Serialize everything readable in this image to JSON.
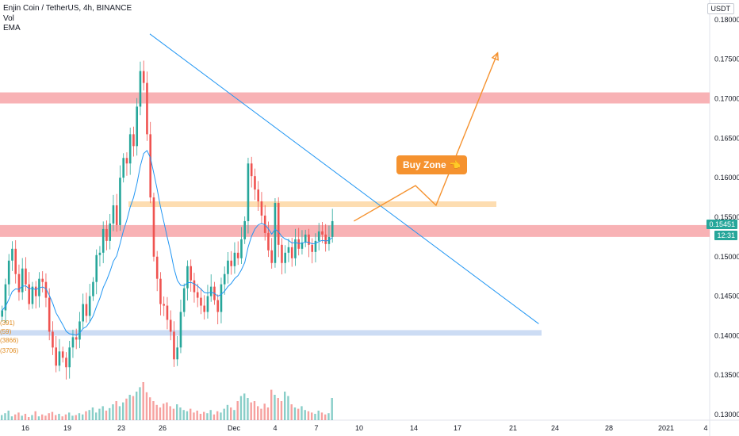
{
  "header": {
    "symbol_line": "Enjin Coin / TetherUS, 4h, BINANCE",
    "vol_label": "Vol",
    "ema_label": "EMA"
  },
  "currency_badge": "USDT",
  "price_tag": {
    "price": "0.15451",
    "countdown": "12:31"
  },
  "annotation": {
    "buy_zone": "Buy Zone 👈"
  },
  "ema_labels": [
    "(391)",
    "(59)",
    "(3866)",
    "(3706)"
  ],
  "colors": {
    "up": "#26a69a",
    "down": "#ef5350",
    "ema": "#2196f3",
    "trend": "#2196f3",
    "resistance": "#f7a5a8",
    "buy_zone": "#fdd9a8",
    "support": "#c6d8f3",
    "arrow": "#f5922f"
  },
  "chart_data": {
    "type": "candlestick",
    "y_ticks": [
      "0.18000",
      "0.17500",
      "0.17000",
      "0.16500",
      "0.16000",
      "0.15500",
      "0.15000",
      "0.14500",
      "0.14000",
      "0.13500",
      "0.13000"
    ],
    "x_ticks": [
      "16",
      "19",
      "23",
      "26",
      "Dec",
      "4",
      "7",
      "10",
      "14",
      "17",
      "21",
      "24",
      "28",
      "2021",
      "4"
    ],
    "ylim": [
      0.1293,
      0.1825
    ],
    "zones": [
      {
        "kind": "resistance",
        "low": 0.1694,
        "high": 0.1708
      },
      {
        "kind": "resistance",
        "low": 0.1525,
        "high": 0.154
      },
      {
        "kind": "buy_zone",
        "low": 0.1563,
        "high": 0.157
      },
      {
        "kind": "support",
        "low": 0.14,
        "high": 0.1407
      }
    ],
    "trendline": {
      "from": {
        "x": "Nov 24",
        "y": 0.1782
      },
      "to": {
        "x": "Dec 17",
        "y": 0.1415
      }
    },
    "projection_path": [
      {
        "x": "Dec 8",
        "y": 0.1545
      },
      {
        "x": "Dec 11",
        "y": 0.159
      },
      {
        "x": "Dec 12",
        "y": 0.1565
      },
      {
        "x": "Dec 15",
        "y": 0.1758
      }
    ],
    "closes": [
      0.1432,
      0.1465,
      0.1495,
      0.151,
      0.1478,
      0.1455,
      0.1485,
      0.1465,
      0.144,
      0.1462,
      0.145,
      0.1472,
      0.1468,
      0.1448,
      0.1405,
      0.1385,
      0.1362,
      0.138,
      0.1372,
      0.136,
      0.1385,
      0.1398,
      0.1395,
      0.1418,
      0.144,
      0.1425,
      0.145,
      0.1468,
      0.1502,
      0.1505,
      0.1535,
      0.152,
      0.1542,
      0.1565,
      0.154,
      0.16,
      0.1625,
      0.1618,
      0.1655,
      0.164,
      0.169,
      0.1735,
      0.172,
      0.1655,
      0.1575,
      0.15,
      0.1472,
      0.144,
      0.1438,
      0.142,
      0.1405,
      0.137,
      0.1385,
      0.143,
      0.146,
      0.1488,
      0.147,
      0.1455,
      0.1448,
      0.1438,
      0.143,
      0.145,
      0.1462,
      0.1445,
      0.143,
      0.1465,
      0.1478,
      0.1495,
      0.1488,
      0.1505,
      0.1498,
      0.1522,
      0.1545,
      0.1618,
      0.1602,
      0.1585,
      0.157,
      0.1552,
      0.153,
      0.1508,
      0.1492,
      0.1568,
      0.1515,
      0.1492,
      0.1505,
      0.1512,
      0.1498,
      0.1522,
      0.151,
      0.1518,
      0.1528,
      0.1515,
      0.1506,
      0.152,
      0.1532,
      0.1528,
      0.1516,
      0.1525,
      0.1545
    ],
    "volumes": [
      8,
      11,
      15,
      6,
      9,
      12,
      7,
      10,
      5,
      8,
      14,
      6,
      9,
      7,
      11,
      13,
      8,
      10,
      6,
      9,
      12,
      7,
      8,
      11,
      9,
      14,
      16,
      20,
      12,
      18,
      22,
      15,
      19,
      25,
      30,
      22,
      28,
      34,
      40,
      38,
      45,
      52,
      60,
      44,
      36,
      30,
      24,
      20,
      26,
      28,
      22,
      18,
      25,
      20,
      16,
      14,
      18,
      12,
      15,
      10,
      13,
      11,
      16,
      9,
      14,
      12,
      18,
      24,
      20,
      16,
      30,
      38,
      42,
      35,
      28,
      30,
      22,
      18,
      26,
      20,
      48,
      40,
      35,
      30,
      45,
      38,
      25,
      20,
      18,
      22,
      16,
      14,
      12,
      10,
      15,
      12,
      9,
      11,
      35
    ]
  }
}
